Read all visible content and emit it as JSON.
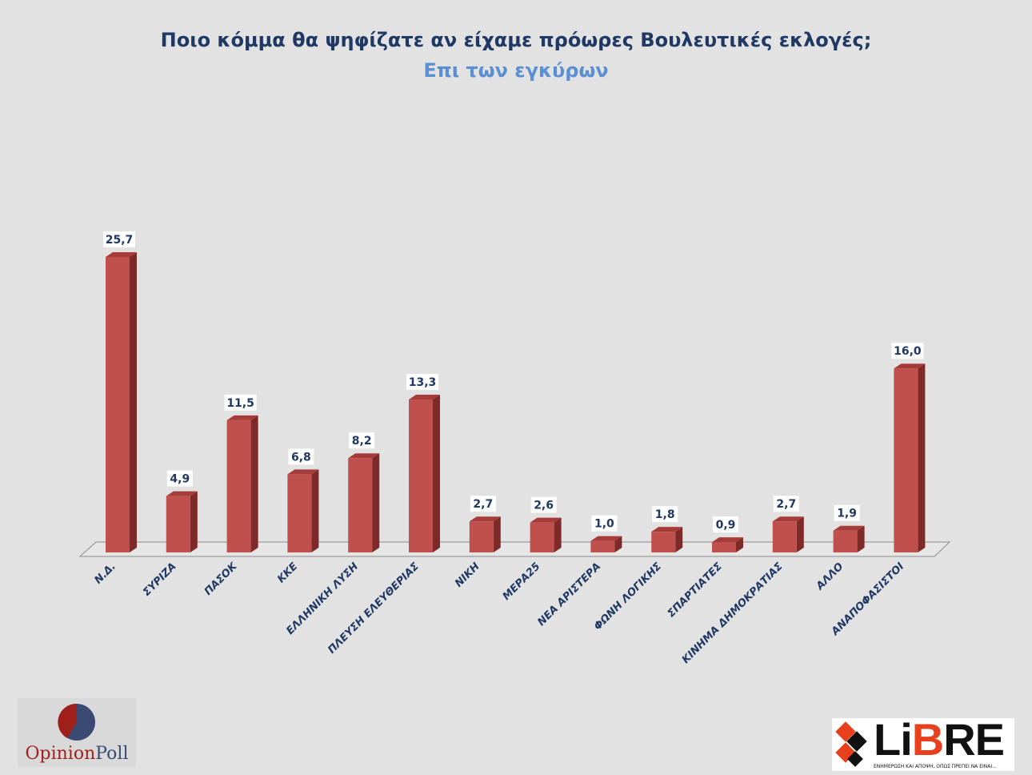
{
  "chart_data": {
    "type": "bar",
    "title": "Ποιο κόμμα θα ψηφίζατε αν είχαμε πρόωρες Βουλευτικές εκλογές;",
    "subtitle": "Επι των εγκύρων",
    "categories": [
      "Ν.Δ.",
      "ΣΥΡΙΖΑ",
      "ΠΑΣΟΚ",
      "ΚΚΕ",
      "ΕΛΛΗΝΙΚΗ ΛΥΣΗ",
      "ΠΛΕΥΣΗ ΕΛΕΥΘΕΡΙΑΣ",
      "ΝΙΚΗ",
      "ΜΕΡΑ25",
      "ΝΕΑ ΑΡΙΣΤΕΡΑ",
      "ΦΩΝΗ ΛΟΓΙΚΗΣ",
      "ΣΠΑΡΤΙΑΤΕΣ",
      "ΚΙΝΗΜΑ ΔΗΜΟΚΡΑΤΙΑΣ",
      "ΑΛΛΟ",
      "ΑΝΑΠΟΦΑΣΙΣΤΟΙ"
    ],
    "values": [
      25.7,
      4.9,
      11.5,
      6.8,
      8.2,
      13.3,
      2.7,
      2.6,
      1.0,
      1.8,
      0.9,
      2.7,
      1.9,
      16.0
    ],
    "data_labels": [
      "25,7",
      "4,9",
      "11,5",
      "6,8",
      "8,2",
      "13,3",
      "2,7",
      "2,6",
      "1,0",
      "1,8",
      "0,9",
      "2,7",
      "1,9",
      "16,0"
    ],
    "xlabel": "",
    "ylabel": "",
    "ylim": [
      0,
      27
    ],
    "grid": false,
    "style": "3d-column",
    "bar_color": "#c0504d",
    "title_color": "#1f3864",
    "subtitle_color": "#5b8fd4"
  },
  "logos": {
    "left": "OpinionPoll",
    "right": "LiBRE",
    "right_tagline": "ΕΝΗΜΕΡΩΣΗ ΚΑΙ ΑΠΟΨΗ, ΟΠΩΣ ΠΡΕΠΕΙ ΝΑ ΕΙΝΑΙ..."
  }
}
